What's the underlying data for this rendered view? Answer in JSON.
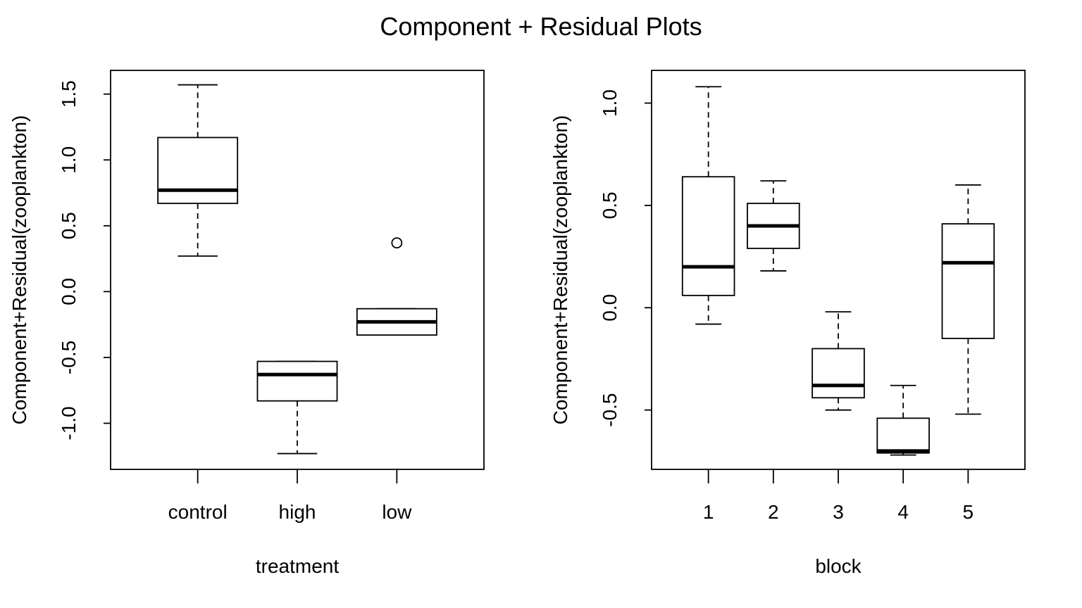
{
  "title": "Component + Residual Plots",
  "chart_data": [
    {
      "type": "box",
      "xlabel": "treatment",
      "ylabel": "Component+Residual(zooplankton)",
      "categories": [
        "control",
        "high",
        "low"
      ],
      "y_ticks": [
        "-1.0",
        "-0.5",
        "0.0",
        "0.5",
        "1.0",
        "1.5"
      ],
      "y_tick_values": [
        -1.0,
        -0.5,
        0.0,
        0.5,
        1.0,
        1.5
      ],
      "ylim": [
        -1.35,
        1.68
      ],
      "grid": false,
      "boxes": [
        {
          "category": "control",
          "whisker_low": 0.27,
          "q1": 0.67,
          "median": 0.77,
          "q3": 1.17,
          "whisker_high": 1.57,
          "outliers": []
        },
        {
          "category": "high",
          "whisker_low": -1.23,
          "q1": -0.83,
          "median": -0.63,
          "q3": -0.53,
          "whisker_high": -0.53,
          "outliers": []
        },
        {
          "category": "low",
          "whisker_low": -0.33,
          "q1": -0.33,
          "median": -0.23,
          "q3": -0.13,
          "whisker_high": -0.13,
          "outliers": [
            0.37
          ]
        }
      ]
    },
    {
      "type": "box",
      "xlabel": "block",
      "ylabel": "Component+Residual(zooplankton)",
      "categories": [
        "1",
        "2",
        "3",
        "4",
        "5"
      ],
      "y_ticks": [
        "-0.5",
        "0.0",
        "0.5",
        "1.0"
      ],
      "y_tick_values": [
        -0.5,
        0.0,
        0.5,
        1.0
      ],
      "ylim": [
        -0.79,
        1.16
      ],
      "grid": false,
      "boxes": [
        {
          "category": "1",
          "whisker_low": -0.08,
          "q1": 0.06,
          "median": 0.2,
          "q3": 0.64,
          "whisker_high": 1.08,
          "outliers": []
        },
        {
          "category": "2",
          "whisker_low": 0.18,
          "q1": 0.29,
          "median": 0.4,
          "q3": 0.51,
          "whisker_high": 0.62,
          "outliers": []
        },
        {
          "category": "3",
          "whisker_low": -0.5,
          "q1": -0.44,
          "median": -0.38,
          "q3": -0.2,
          "whisker_high": -0.02,
          "outliers": []
        },
        {
          "category": "4",
          "whisker_low": -0.72,
          "q1": -0.71,
          "median": -0.7,
          "q3": -0.54,
          "whisker_high": -0.38,
          "outliers": []
        },
        {
          "category": "5",
          "whisker_low": -0.52,
          "q1": -0.15,
          "median": 0.22,
          "q3": 0.41,
          "whisker_high": 0.6,
          "outliers": []
        }
      ]
    }
  ]
}
